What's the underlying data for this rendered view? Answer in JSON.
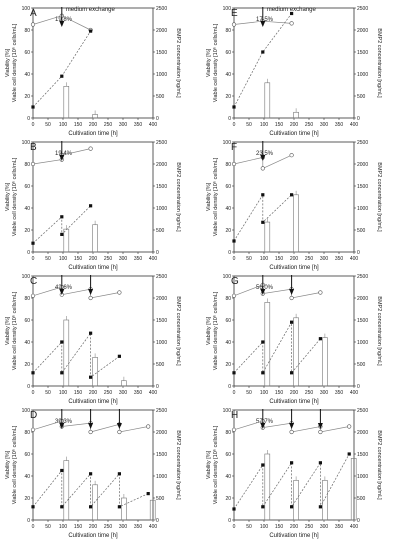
{
  "figure": {
    "annotation": "medium exchange",
    "y_left_outer_label": "Viability [%]",
    "y_left_inner_label": "Viable cell density [10⁶ cells/mL]",
    "y_right_label": "BMP2 concentration [ng/mL]",
    "x_label": "Cultivation time [h]",
    "x_ticks": [
      "0",
      "50",
      "100",
      "150",
      "200",
      "250",
      "300",
      "350",
      "400"
    ],
    "y_left_ticks": [
      "0",
      "20",
      "40",
      "60",
      "80",
      "100"
    ],
    "y_right_ticks": [
      "0",
      "500",
      "1000",
      "1500",
      "2000",
      "2500"
    ]
  },
  "chart_data": [
    {
      "panel": "A",
      "type": "line",
      "percent_label": "19.8%",
      "xlim": [
        0,
        400
      ],
      "ylim_left": [
        0,
        100
      ],
      "ylim_right": [
        0,
        2500
      ],
      "arrows_x": [
        96
      ],
      "viability": {
        "x": [
          0,
          96,
          192
        ],
        "y": [
          85,
          93,
          80
        ]
      },
      "vcd": {
        "x": [
          0,
          96,
          192
        ],
        "y": [
          10,
          38,
          79
        ]
      },
      "bmp2": {
        "x": [
          96,
          192
        ],
        "y": [
          720,
          80
        ]
      }
    },
    {
      "panel": "B",
      "type": "line",
      "percent_label": "19.4%",
      "xlim": [
        0,
        400
      ],
      "ylim_left": [
        0,
        100
      ],
      "ylim_right": [
        0,
        2500
      ],
      "arrows_x": [
        96
      ],
      "viability": {
        "x": [
          0,
          96,
          96,
          192
        ],
        "y": [
          80,
          84,
          88,
          94
        ]
      },
      "vcd": {
        "x": [
          0,
          96,
          96,
          192
        ],
        "y": [
          8,
          32,
          16,
          42
        ]
      },
      "bmp2": {
        "x": [
          96,
          192
        ],
        "y": [
          520,
          620
        ]
      }
    },
    {
      "panel": "C",
      "type": "line",
      "percent_label": "43.6%",
      "xlim": [
        0,
        400
      ],
      "ylim_left": [
        0,
        100
      ],
      "ylim_right": [
        0,
        2500
      ],
      "arrows_x": [
        96,
        192
      ],
      "viability": {
        "x": [
          0,
          96,
          96,
          192,
          192,
          288
        ],
        "y": [
          82,
          90,
          83,
          88,
          80,
          85
        ]
      },
      "vcd": {
        "x": [
          0,
          96,
          96,
          192,
          192,
          288
        ],
        "y": [
          12,
          40,
          12,
          48,
          8,
          27
        ]
      },
      "bmp2": {
        "x": [
          96,
          192,
          288
        ],
        "y": [
          1500,
          650,
          120
        ]
      }
    },
    {
      "panel": "D",
      "type": "line",
      "percent_label": "39.3%",
      "xlim": [
        0,
        400
      ],
      "ylim_left": [
        0,
        100
      ],
      "ylim_right": [
        0,
        2500
      ],
      "arrows_x": [
        96,
        192,
        288
      ],
      "viability": {
        "x": [
          0,
          96,
          96,
          192,
          192,
          288,
          288,
          384
        ],
        "y": [
          82,
          90,
          85,
          88,
          80,
          87,
          80,
          85
        ]
      },
      "vcd": {
        "x": [
          0,
          96,
          96,
          192,
          192,
          288,
          288,
          384
        ],
        "y": [
          12,
          45,
          12,
          42,
          12,
          42,
          12,
          24
        ]
      },
      "bmp2": {
        "x": [
          96,
          192,
          288,
          384
        ],
        "y": [
          1350,
          800,
          500,
          450
        ]
      }
    },
    {
      "panel": "E",
      "type": "line",
      "percent_label": "17.5%",
      "xlim": [
        0,
        400
      ],
      "ylim_left": [
        0,
        100
      ],
      "ylim_right": [
        0,
        2500
      ],
      "arrows_x": [
        96
      ],
      "viability": {
        "x": [
          0,
          96,
          192
        ],
        "y": [
          85,
          88,
          86
        ]
      },
      "vcd": {
        "x": [
          0,
          96,
          192
        ],
        "y": [
          10,
          60,
          95
        ]
      },
      "bmp2": {
        "x": [
          96,
          192
        ],
        "y": [
          800,
          130
        ]
      }
    },
    {
      "panel": "F",
      "type": "line",
      "percent_label": "23.5%",
      "xlim": [
        0,
        400
      ],
      "ylim_left": [
        0,
        100
      ],
      "ylim_right": [
        0,
        2500
      ],
      "arrows_x": [
        96
      ],
      "viability": {
        "x": [
          0,
          96,
          96,
          192
        ],
        "y": [
          80,
          86,
          76,
          88
        ]
      },
      "vcd": {
        "x": [
          0,
          96,
          96,
          192
        ],
        "y": [
          10,
          52,
          27,
          52
        ]
      },
      "bmp2": {
        "x": [
          96,
          192
        ],
        "y": [
          680,
          1300
        ]
      }
    },
    {
      "panel": "G",
      "type": "line",
      "percent_label": "56.0%",
      "xlim": [
        0,
        400
      ],
      "ylim_left": [
        0,
        100
      ],
      "ylim_right": [
        0,
        2500
      ],
      "arrows_x": [
        96,
        192
      ],
      "viability": {
        "x": [
          0,
          96,
          96,
          192,
          192,
          288
        ],
        "y": [
          82,
          92,
          84,
          88,
          80,
          85
        ]
      },
      "vcd": {
        "x": [
          0,
          96,
          96,
          192,
          192,
          288
        ],
        "y": [
          12,
          40,
          12,
          58,
          12,
          43
        ]
      },
      "bmp2": {
        "x": [
          96,
          192,
          288
        ],
        "y": [
          1900,
          1550,
          1100
        ]
      }
    },
    {
      "panel": "H",
      "type": "line",
      "percent_label": "57.7%",
      "xlim": [
        0,
        400
      ],
      "ylim_left": [
        0,
        100
      ],
      "ylim_right": [
        0,
        2500
      ],
      "arrows_x": [
        96,
        192,
        288
      ],
      "viability": {
        "x": [
          0,
          96,
          96,
          192,
          192,
          288,
          288,
          384
        ],
        "y": [
          82,
          90,
          84,
          88,
          80,
          85,
          80,
          85
        ]
      },
      "vcd": {
        "x": [
          0,
          96,
          96,
          192,
          192,
          288,
          288,
          384
        ],
        "y": [
          10,
          50,
          12,
          52,
          12,
          52,
          12,
          60
        ]
      },
      "bmp2": {
        "x": [
          96,
          192,
          288,
          384
        ],
        "y": [
          1500,
          900,
          900,
          1400
        ]
      }
    }
  ]
}
